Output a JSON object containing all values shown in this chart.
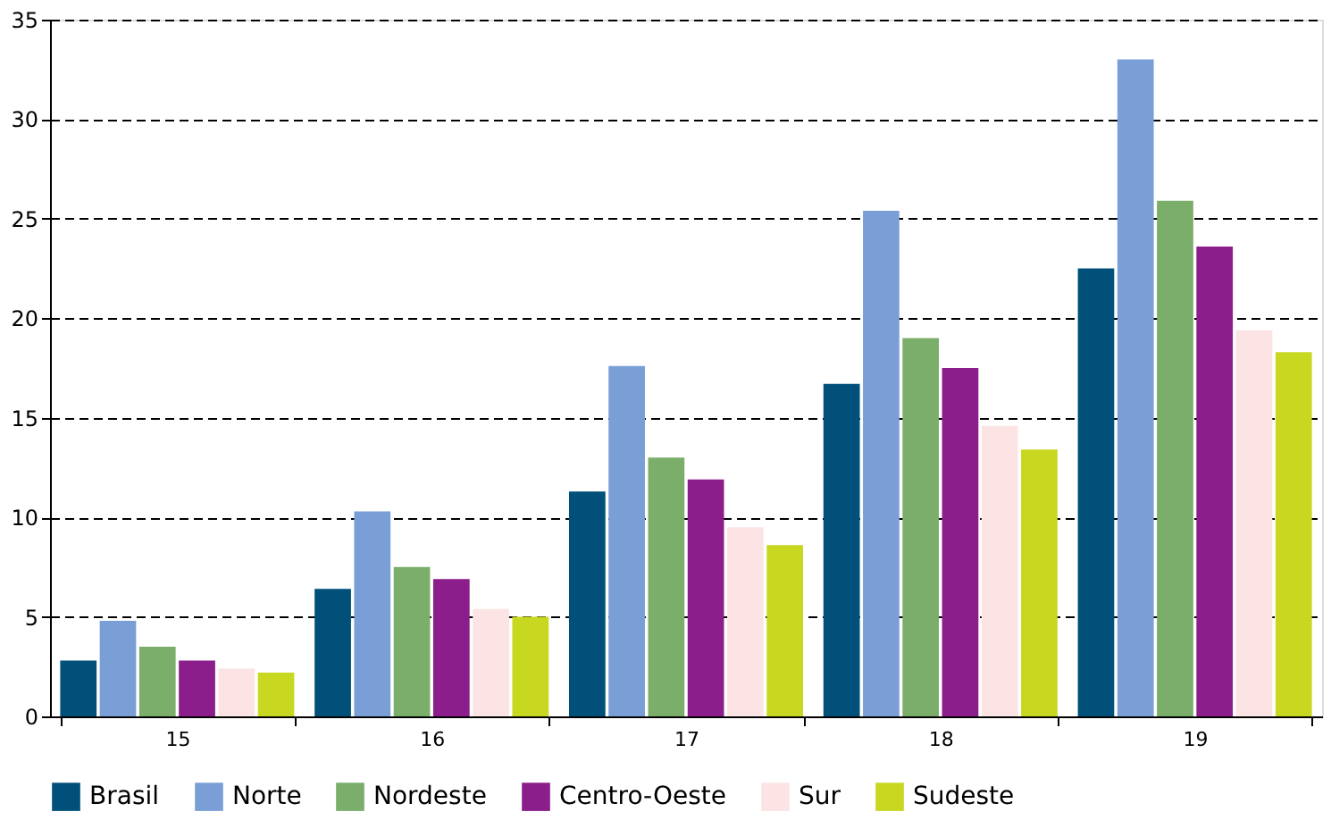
{
  "chart_data": {
    "type": "bar",
    "categories": [
      "15",
      "16",
      "17",
      "18",
      "19"
    ],
    "series": [
      {
        "name": "Brasil",
        "color": "#00507a",
        "values": [
          2.8,
          6.4,
          11.3,
          16.7,
          22.5
        ]
      },
      {
        "name": "Norte",
        "color": "#7a9fd6",
        "values": [
          4.8,
          10.3,
          17.6,
          25.4,
          33.0
        ]
      },
      {
        "name": "Nordeste",
        "color": "#7aae6a",
        "values": [
          3.5,
          7.5,
          13.0,
          19.0,
          25.9
        ]
      },
      {
        "name": "Centro-Oeste",
        "color": "#8b1e8b",
        "values": [
          2.8,
          6.9,
          11.9,
          17.5,
          23.6
        ]
      },
      {
        "name": "Sur",
        "color": "#fce4e4",
        "values": [
          2.4,
          5.4,
          9.5,
          14.6,
          19.4
        ]
      },
      {
        "name": "Sudeste",
        "color": "#c8d820",
        "values": [
          2.2,
          5.0,
          8.6,
          13.4,
          18.3
        ]
      }
    ],
    "ylim": [
      0,
      35
    ],
    "yticks": [
      0,
      5,
      10,
      15,
      20,
      25,
      30,
      35
    ],
    "grid": "y",
    "legend": "bottom"
  }
}
